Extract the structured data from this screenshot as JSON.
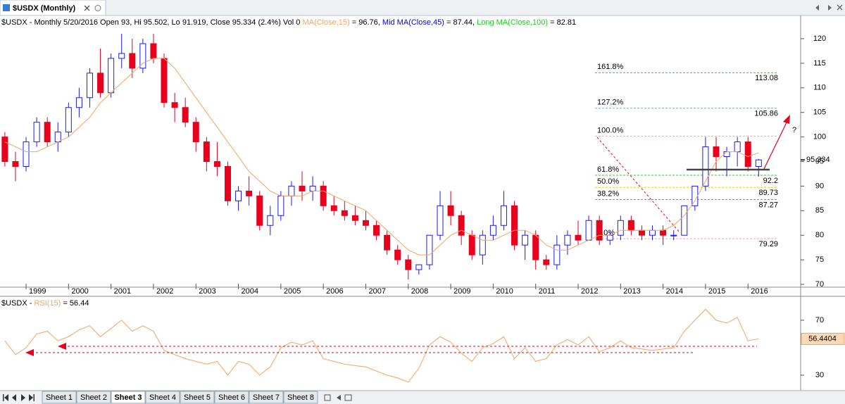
{
  "window": {
    "tab": "$USDX (Monthly)"
  },
  "header": {
    "info": "$USDX - Monthly 5/20/2016 Open 93, Hi 95.502, Lo 91.919, Close 95.334 (2.4%) Vol 0",
    "ma_value": "= 96.76,",
    "studies": [
      {
        "name": "Mid MA(Close,45)",
        "value": "= 87.44,",
        "color": "#0000ff"
      },
      {
        "name": "Long MA(Close,100)",
        "value": "= 82.81",
        "color": "#22cc22"
      }
    ]
  },
  "chart_data": [
    {
      "type": "candlestick",
      "xlim": [
        1998.386,
        2017.24
      ],
      "xticks": [
        1999,
        2000,
        2001,
        2002,
        2003,
        2004,
        2005,
        2006,
        2007,
        2008,
        2009,
        2010,
        2011,
        2012,
        2013,
        2014,
        2015,
        2016
      ],
      "ylim": [
        69.43,
        123.87
      ],
      "yticks": [
        70,
        75,
        80,
        85,
        90,
        95,
        100,
        105,
        110,
        115,
        120
      ],
      "up_color": "#1a1aff",
      "down_color": "#e8001c",
      "x": [
        1998.5,
        1998.75,
        1999,
        1999.25,
        1999.5,
        1999.75,
        2000,
        2000.25,
        2000.5,
        2000.75,
        2001,
        2001.25,
        2001.5,
        2001.75,
        2002,
        2002.25,
        2002.5,
        2002.75,
        2003,
        2003.25,
        2003.5,
        2003.75,
        2004,
        2004.25,
        2004.5,
        2004.75,
        2005,
        2005.25,
        2005.5,
        2005.75,
        2006,
        2006.25,
        2006.5,
        2006.75,
        2007,
        2007.25,
        2007.5,
        2007.75,
        2008,
        2008.25,
        2008.5,
        2008.75,
        2009,
        2009.25,
        2009.5,
        2009.75,
        2010,
        2010.25,
        2010.5,
        2010.75,
        2011,
        2011.25,
        2011.5,
        2011.75,
        2012,
        2012.25,
        2012.5,
        2012.75,
        2013,
        2013.25,
        2013.5,
        2013.75,
        2014,
        2014.25,
        2014.5,
        2014.75,
        2015,
        2015.25,
        2015.5,
        2015.75,
        2016,
        2016.25
      ],
      "open": [
        100,
        95,
        94,
        99,
        103,
        99,
        101,
        106,
        108,
        113,
        109,
        116,
        117,
        114,
        119,
        116,
        107,
        106,
        103,
        99,
        95,
        94,
        87,
        89,
        88,
        82,
        84,
        88,
        90,
        89,
        90,
        86,
        85,
        84,
        83,
        82,
        80,
        77,
        75,
        73,
        74,
        80,
        86,
        84,
        80,
        76,
        80,
        82,
        86,
        78,
        80,
        75,
        74,
        78,
        80,
        79,
        83,
        79,
        80,
        83,
        81,
        80,
        81,
        80,
        80,
        86,
        90,
        98,
        96,
        97,
        99,
        94
      ],
      "high": [
        101,
        97,
        100,
        104,
        104,
        103,
        107,
        110,
        114,
        118,
        117,
        121,
        120,
        120,
        121,
        117,
        109,
        108,
        104,
        100,
        99,
        95,
        90,
        92,
        89,
        86,
        89,
        91,
        93,
        92,
        91,
        88,
        87,
        86,
        85,
        83,
        81,
        78,
        76,
        74,
        80,
        89,
        89,
        85,
        81,
        81,
        84,
        89,
        87,
        81,
        81,
        76,
        80,
        81,
        83,
        84,
        84,
        81,
        84,
        84,
        82,
        82,
        82,
        81,
        86,
        90,
        100,
        100,
        98,
        100,
        100,
        95.502
      ],
      "low": [
        94,
        91,
        93,
        98,
        98,
        97,
        100,
        104,
        106,
        108,
        108,
        114,
        112,
        113,
        115,
        106,
        103,
        102,
        97,
        93,
        92,
        86,
        85,
        86,
        81,
        80,
        83,
        86,
        87,
        87,
        85,
        84,
        83,
        82,
        81,
        79,
        76,
        74,
        71,
        72,
        73,
        79,
        82,
        78,
        75,
        74,
        79,
        81,
        77,
        75,
        73,
        73,
        73,
        76,
        78,
        79,
        78,
        78,
        79,
        80,
        79,
        79,
        78,
        79,
        80,
        85,
        89,
        93,
        92,
        94,
        93,
        91.919
      ],
      "close": [
        95,
        94,
        99,
        103,
        99,
        101,
        106,
        108,
        113,
        109,
        116,
        117,
        114,
        119,
        116,
        107,
        106,
        103,
        99,
        95,
        94,
        87,
        89,
        88,
        82,
        84,
        88,
        90,
        89,
        90,
        86,
        85,
        84,
        83,
        82,
        80,
        77,
        75,
        73,
        74,
        80,
        86,
        84,
        80,
        76,
        80,
        82,
        86,
        78,
        80,
        75,
        74,
        78,
        80,
        79,
        83,
        79,
        80,
        83,
        81,
        80,
        81,
        80,
        80,
        86,
        90,
        98,
        96,
        97,
        99,
        94,
        95.334
      ],
      "ma": {
        "name": "MA(Close,15)",
        "color": "#f4a460",
        "values": [
          99,
          98,
          97,
          97,
          98,
          99,
          100,
          102,
          104,
          107,
          109,
          111,
          113,
          115,
          116,
          116,
          114,
          111,
          108,
          105,
          102,
          99,
          96,
          93,
          91,
          89,
          88,
          88,
          88,
          89,
          89,
          88,
          87,
          86,
          85,
          83,
          81,
          79,
          77,
          76,
          76,
          78,
          80,
          81,
          80,
          79,
          79,
          80,
          81,
          81,
          80,
          78,
          77,
          77,
          78,
          79,
          80,
          80,
          81,
          81,
          81,
          81,
          81,
          82,
          84,
          87,
          91,
          95,
          97,
          97,
          96,
          96.76
        ]
      },
      "fib_levels": [
        {
          "label": "161.8%",
          "value": 113.08,
          "color": "#33cc33",
          "price_label": true
        },
        {
          "label": "127.2%",
          "value": 105.86,
          "color": "#33cccc",
          "price_label": true
        },
        {
          "label": "100.0%",
          "value": 100.17,
          "color": "#ff9fb5",
          "price_label": false
        },
        {
          "label": "61.8%",
          "value": 92.2,
          "color": "#33cc33",
          "price_label": true
        },
        {
          "label": "50.0%",
          "value": 89.73,
          "color": "#e6d800",
          "price_label": true
        },
        {
          "label": "38.2%",
          "value": 87.27,
          "color": "#33cc33",
          "price_label": true
        },
        {
          "label": "0.0%",
          "value": 79.29,
          "color": "#ff9fb5",
          "price_label": true
        }
      ],
      "last": 95.334,
      "annotation": "?"
    },
    {
      "type": "line",
      "title_prefix": "$USDX -",
      "name": "RSI(15)",
      "title_value": "= 56.44",
      "color": "#f4a460",
      "ylim": [
        18.72,
        86.92
      ],
      "yticks": [
        30,
        70
      ],
      "values": [
        55,
        45,
        50,
        60,
        62,
        55,
        58,
        63,
        66,
        58,
        64,
        70,
        62,
        66,
        62,
        48,
        45,
        42,
        40,
        38,
        40,
        30,
        40,
        38,
        30,
        36,
        50,
        54,
        52,
        55,
        42,
        40,
        38,
        37,
        36,
        33,
        30,
        28,
        25,
        35,
        52,
        58,
        54,
        46,
        40,
        50,
        53,
        58,
        42,
        50,
        40,
        42,
        52,
        56,
        52,
        58,
        47,
        50,
        55,
        50,
        49,
        48,
        49,
        50,
        62,
        70,
        78,
        70,
        68,
        72,
        55,
        56.4404
      ],
      "last": 56.4404
    }
  ],
  "sheets": {
    "tabs": [
      "Sheet 1",
      "Sheet 2",
      "Sheet 3",
      "Sheet 4",
      "Sheet 5",
      "Sheet 6",
      "Sheet 7",
      "Sheet 8"
    ],
    "active": 2
  }
}
